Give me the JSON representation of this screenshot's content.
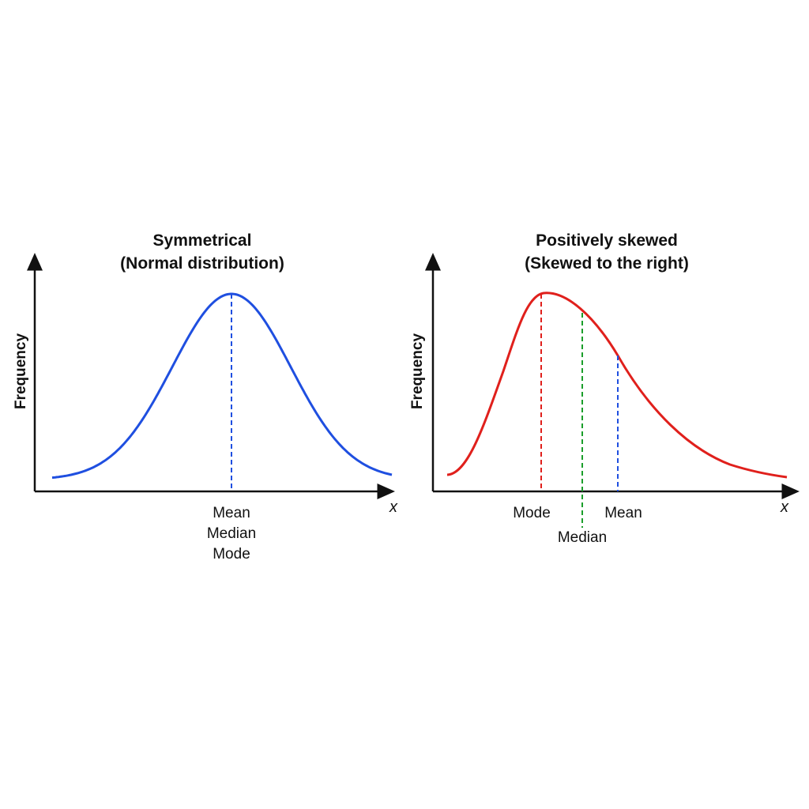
{
  "panels": [
    {
      "title_line1": "Symmetrical",
      "title_line2": "(Normal distribution)",
      "ylabel": "Frequency",
      "xlabel": "x",
      "curve_color": "#1f4fe0",
      "marker_labels": [
        "Mean",
        "Median",
        "Mode"
      ]
    },
    {
      "title_line1": "Positively skewed",
      "title_line2": "(Skewed to the right)",
      "ylabel": "Frequency",
      "xlabel": "x",
      "curve_color": "#e0201c",
      "markers": [
        {
          "label": "Mode",
          "color": "#e0201c"
        },
        {
          "label": "Median",
          "color": "#1a9e2a"
        },
        {
          "label": "Mean",
          "color": "#1f4fe0"
        }
      ]
    }
  ]
}
